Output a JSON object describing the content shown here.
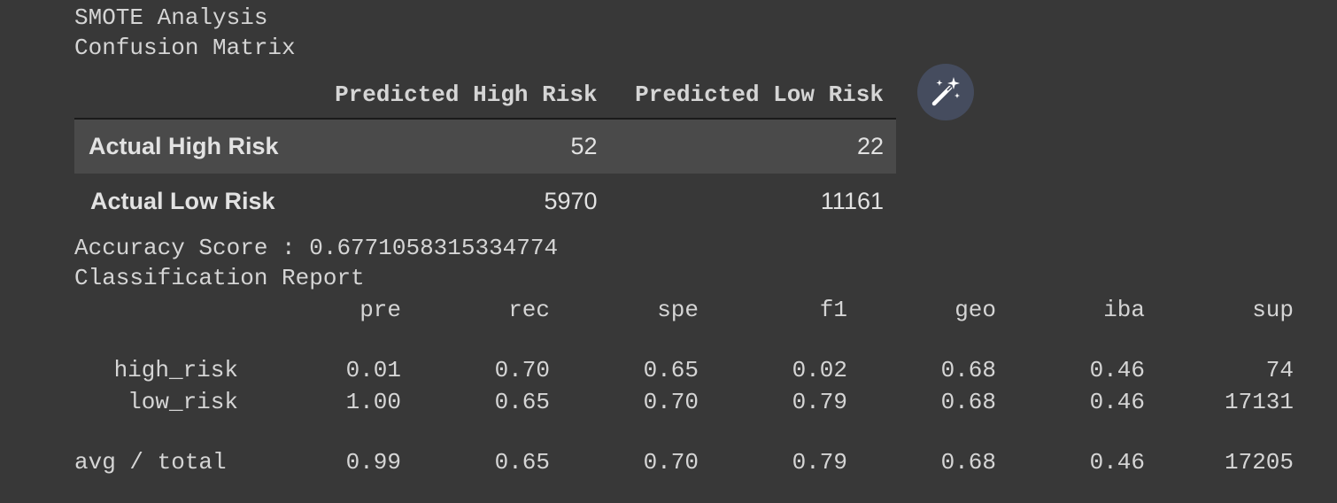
{
  "output": {
    "title_line_1": "SMOTE Analysis",
    "title_line_2": "Confusion Matrix",
    "confusion_matrix": {
      "column_headers": [
        "Predicted High Risk",
        "Predicted Low Risk"
      ],
      "rows": [
        {
          "label": "Actual High Risk",
          "values": [
            "52",
            "22"
          ]
        },
        {
          "label": "Actual Low Risk",
          "values": [
            "5970",
            "11161"
          ]
        }
      ]
    },
    "accuracy_line": "Accuracy Score : 0.6771058315334774",
    "classification_report_title": "Classification Report",
    "report": {
      "headers": [
        "pre",
        "rec",
        "spe",
        "f1",
        "geo",
        "iba",
        "sup"
      ],
      "rows": [
        {
          "label": "high_risk",
          "values": [
            "0.01",
            "0.70",
            "0.65",
            "0.02",
            "0.68",
            "0.46",
            "74"
          ]
        },
        {
          "label": "low_risk",
          "values": [
            "1.00",
            "0.65",
            "0.70",
            "0.79",
            "0.68",
            "0.46",
            "17131"
          ]
        },
        {
          "label": "avg / total",
          "values": [
            "0.99",
            "0.65",
            "0.70",
            "0.79",
            "0.68",
            "0.46",
            "17205"
          ]
        }
      ]
    }
  },
  "toolbar": {
    "wand_icon": "magic-wand-icon",
    "accent": "#454c5e"
  }
}
